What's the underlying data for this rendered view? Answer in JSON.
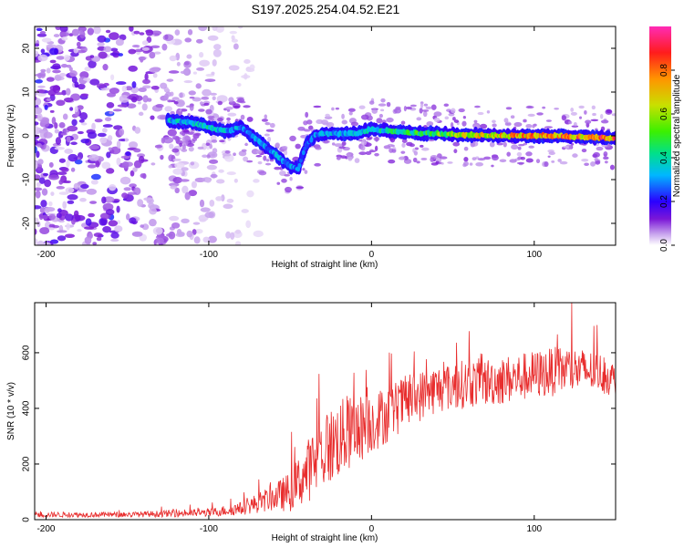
{
  "title": "S197.2025.254.04.52.E21",
  "chart_data": [
    {
      "type": "heatmap",
      "xlabel": "Height of straight line (km)",
      "ylabel": "Frequency (Hz)",
      "xlim": [
        -207,
        150
      ],
      "ylim": [
        -25,
        25
      ],
      "xticks": [
        -200,
        -100,
        0,
        100
      ],
      "xtick_labels": [
        "-200",
        "-100",
        "0",
        "100"
      ],
      "yticks": [
        -20,
        -10,
        0,
        10,
        20
      ],
      "ytick_labels": [
        "-20",
        "-10",
        "0",
        "10",
        "20"
      ],
      "colorbar": {
        "label": "Normalized spectral amplitude",
        "range": [
          0,
          1
        ],
        "ticks": [
          0.0,
          0.2,
          0.4,
          0.6,
          0.8
        ],
        "tick_labels": [
          "0.0",
          "0.2",
          "0.4",
          "0.6",
          "0.8"
        ],
        "colors": [
          "#ffffff",
          "#c9a6ee",
          "#7b17d7",
          "#2a00ff",
          "#00b7ff",
          "#00e08a",
          "#3cf000",
          "#c8e000",
          "#ff9500",
          "#ff1c1c",
          "#ff2bb6"
        ]
      },
      "ridge": {
        "x": [
          -125,
          -110,
          -100,
          -90,
          -80,
          -70,
          -60,
          -50,
          -45,
          -40,
          -35,
          -30,
          -20,
          -10,
          0,
          20,
          50,
          80,
          110,
          150
        ],
        "y": [
          3.5,
          3.0,
          2.0,
          1.0,
          2.0,
          -1.0,
          -4.0,
          -7.0,
          -7.5,
          -2.0,
          0.0,
          0.5,
          0.5,
          0.5,
          1.5,
          0.8,
          0.3,
          0.0,
          0.0,
          -0.5
        ],
        "amplitude": [
          0.35,
          0.38,
          0.4,
          0.35,
          0.32,
          0.3,
          0.32,
          0.35,
          0.3,
          0.25,
          0.3,
          0.35,
          0.35,
          0.35,
          0.38,
          0.45,
          0.6,
          0.75,
          0.8,
          0.85
        ]
      },
      "noise_region_x": [
        -207,
        -120
      ]
    },
    {
      "type": "line",
      "xlabel": "Height of straight line (km)",
      "ylabel": "SNR (10 * v/v)",
      "xlim": [
        -207,
        150
      ],
      "ylim": [
        0,
        780
      ],
      "xticks": [
        -200,
        -100,
        0,
        100
      ],
      "xtick_labels": [
        "-200",
        "-100",
        "0",
        "100"
      ],
      "yticks": [
        0,
        200,
        400,
        600
      ],
      "ytick_labels": [
        "0",
        "200",
        "400",
        "600"
      ],
      "color": "#e82d2d",
      "envelope": {
        "x": [
          -207,
          -150,
          -100,
          -80,
          -70,
          -60,
          -50,
          -40,
          -30,
          -20,
          -10,
          0,
          10,
          20,
          40,
          60,
          80,
          100,
          120,
          140,
          150
        ],
        "baseline": [
          18,
          18,
          25,
          40,
          60,
          80,
          100,
          170,
          240,
          290,
          320,
          350,
          380,
          420,
          470,
          490,
          500,
          520,
          540,
          530,
          500
        ],
        "noise_amp": [
          12,
          12,
          18,
          30,
          45,
          60,
          90,
          140,
          170,
          180,
          160,
          140,
          130,
          120,
          110,
          110,
          110,
          110,
          110,
          90,
          80
        ]
      },
      "num_points": 1100
    }
  ]
}
